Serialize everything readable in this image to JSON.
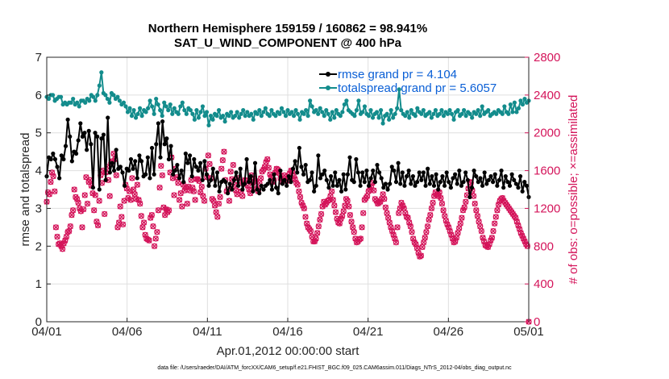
{
  "chart_data": {
    "type": "line",
    "title": "Northern Hemisphere 159159 / 160862 = 98.941%",
    "subtitle": "SAT_U_WIND_COMPONENT @ 400 hPa",
    "xlabel": "Apr.01,2012 00:00:00 start",
    "ylabel_left": "rmse and totalspread",
    "ylabel_right": "# of obs: o=possible; ×=assimilated",
    "xlim": [
      0,
      30
    ],
    "ylim_left": [
      0,
      7
    ],
    "ylim_right": [
      0,
      2800
    ],
    "x_ticks": [
      0,
      5,
      10,
      15,
      20,
      25,
      30
    ],
    "x_tick_labels": [
      "04/01",
      "04/06",
      "04/11",
      "04/16",
      "04/21",
      "04/26",
      "05/01"
    ],
    "y_ticks_left": [
      "0",
      "1",
      "2",
      "3",
      "4",
      "5",
      "6",
      "7"
    ],
    "y_ticks_right": [
      "0",
      "400",
      "800",
      "1200",
      "1600",
      "2000",
      "2400",
      "2800"
    ],
    "grid": true,
    "legend_position": "top-right",
    "colors": {
      "rmse": "#000000",
      "spread": "#138c8c",
      "obs": "#d4145a",
      "legend_text": "#0a5fd6"
    },
    "series": [
      {
        "name": "rmse grand pr = 4.104",
        "axis": "left",
        "values": [
          3.85,
          4.35,
          4.3,
          4.45,
          4.3,
          4.1,
          3.8,
          4.4,
          4.3,
          4.65,
          5.35,
          4.9,
          4.25,
          4.5,
          4.45,
          4.8,
          5.25,
          4.9,
          5.0,
          4.55,
          5.05,
          4.7,
          3.55,
          5.0,
          4.9,
          3.5,
          4.85,
          4.95,
          3.75,
          5.4,
          3.95,
          4.2,
          4.0,
          4.55,
          4.05,
          4.1,
          3.95,
          3.6,
          4.05,
          4.0,
          4.3,
          4.05,
          4.25,
          3.8,
          4.4,
          4.25,
          3.85,
          3.9,
          4.35,
          3.8,
          4.6,
          3.9,
          4.7,
          5.25,
          4.35,
          5.3,
          4.7,
          4.85,
          4.3,
          4.65,
          3.9,
          4.0,
          4.15,
          3.8,
          4.0,
          3.7,
          4.45,
          4.2,
          4.4,
          3.85,
          4.3,
          4.1,
          4.0,
          4.2,
          3.75,
          4.25,
          3.9,
          3.6,
          3.75,
          4.05,
          3.6,
          3.95,
          3.45,
          3.7,
          3.75,
          3.7,
          3.4,
          3.65,
          3.5,
          3.75,
          3.95,
          3.6,
          4.05,
          3.5,
          3.65,
          4.3,
          3.7,
          3.85,
          3.45,
          4.2,
          3.5,
          3.4,
          3.6,
          3.5,
          3.6,
          3.65,
          3.75,
          3.5,
          3.9,
          3.55,
          3.4,
          4.0,
          3.65,
          3.75,
          3.6,
          3.85,
          3.7,
          4.05,
          4.25,
          3.95,
          4.6,
          4.1,
          3.9,
          4.15,
          3.7,
          3.75,
          3.95,
          3.45,
          3.6,
          4.4,
          3.8,
          3.9,
          4.0,
          3.75,
          3.55,
          3.85,
          3.6,
          3.95,
          3.6,
          3.75,
          3.45,
          3.9,
          3.5,
          3.9,
          4.35,
          3.75,
          3.7,
          4.3,
          3.95,
          3.6,
          3.95,
          3.7,
          4.0,
          3.6,
          3.8,
          4.0,
          3.7,
          4.15,
          3.95,
          3.8,
          3.55,
          3.65,
          3.5,
          3.65,
          4.1,
          4.0,
          3.7,
          4.2,
          3.65,
          3.95,
          3.6,
          3.85,
          4.0,
          3.65,
          3.85,
          3.6,
          3.7,
          3.95,
          3.75,
          3.95,
          3.6,
          4.05,
          3.65,
          3.85,
          3.6,
          3.9,
          3.5,
          3.7,
          3.85,
          3.6,
          3.95,
          3.7,
          3.55,
          3.8,
          3.9,
          3.65,
          4.0,
          3.6,
          3.7,
          3.95,
          3.75,
          3.3,
          3.55,
          4.0,
          3.85,
          3.7,
          3.8,
          3.6,
          3.95,
          3.65,
          3.75,
          3.85,
          3.7,
          3.9,
          3.6,
          3.75,
          4.0,
          3.55,
          3.85,
          3.7,
          3.6,
          3.9,
          3.75,
          3.65,
          3.55,
          3.85,
          3.45,
          3.7,
          3.6,
          3.3
        ]
      },
      {
        "name": "totalspread grand pr = 5.6057",
        "axis": "left",
        "values": [
          5.95,
          5.9,
          6.0,
          6.0,
          5.85,
          5.9,
          5.95,
          5.95,
          5.75,
          5.8,
          5.75,
          5.8,
          5.8,
          5.9,
          5.75,
          5.8,
          5.7,
          5.85,
          5.85,
          5.8,
          5.9,
          5.85,
          6.0,
          5.95,
          5.85,
          6.0,
          6.25,
          6.6,
          6.05,
          6.0,
          5.9,
          5.8,
          6.05,
          6.0,
          5.9,
          5.95,
          5.85,
          5.75,
          5.8,
          5.7,
          5.55,
          5.65,
          5.45,
          5.6,
          5.4,
          5.5,
          5.65,
          5.45,
          5.6,
          5.55,
          5.65,
          5.85,
          5.7,
          5.5,
          5.9,
          5.75,
          5.6,
          5.45,
          5.8,
          5.7,
          5.6,
          5.75,
          5.5,
          5.65,
          5.55,
          5.5,
          5.7,
          5.8,
          5.6,
          5.5,
          5.65,
          5.6,
          5.5,
          5.35,
          5.6,
          5.4,
          5.55,
          5.7,
          5.45,
          5.55,
          5.2,
          5.45,
          5.35,
          5.5,
          5.45,
          5.6,
          5.4,
          5.45,
          5.3,
          5.5,
          5.45,
          5.55,
          5.4,
          5.45,
          5.55,
          5.4,
          5.5,
          5.6,
          5.45,
          5.55,
          5.45,
          5.5,
          5.35,
          5.55,
          5.5,
          5.6,
          5.45,
          5.55,
          5.65,
          5.5,
          5.45,
          5.6,
          5.5,
          5.45,
          5.55,
          5.5,
          5.65,
          5.55,
          5.45,
          5.6,
          5.5,
          5.55,
          5.45,
          5.6,
          5.5,
          5.35,
          5.55,
          5.5,
          5.6,
          5.45,
          5.85,
          5.7,
          5.55,
          5.6,
          5.5,
          5.65,
          5.55,
          5.45,
          5.6,
          5.5,
          5.35,
          5.55,
          5.4,
          5.6,
          5.5,
          5.45,
          5.55,
          5.75,
          5.85,
          5.6,
          5.55,
          5.5,
          5.45,
          5.6,
          5.85,
          5.5,
          5.55,
          5.7,
          5.5,
          5.45,
          5.6,
          5.4,
          5.5,
          5.55,
          5.4,
          5.6,
          5.25,
          5.45,
          5.5,
          5.35,
          5.6,
          5.4,
          5.5,
          5.65,
          6.15,
          5.6,
          5.5,
          5.45,
          5.55,
          5.4,
          5.6,
          5.5,
          5.45,
          5.65,
          5.55,
          5.5,
          5.6,
          5.45,
          5.5,
          5.55,
          5.4,
          5.5,
          5.6,
          5.45,
          5.5,
          5.6,
          5.45,
          5.55,
          5.5,
          5.6,
          5.5,
          5.35,
          5.55,
          5.6,
          5.45,
          5.5,
          5.6,
          5.45,
          5.55,
          5.5,
          5.4,
          5.55,
          5.5,
          5.6,
          5.45,
          5.7,
          5.5,
          5.55,
          5.6,
          5.45,
          5.5,
          5.55,
          5.5,
          5.6,
          5.55,
          5.5,
          5.7,
          5.55,
          5.5,
          5.75,
          5.55,
          5.8,
          5.55,
          5.65,
          5.85,
          5.75,
          5.9,
          5.8,
          5.85
        ]
      },
      {
        "name": "obs possible",
        "axis": "right",
        "values": [
          1270,
          1370,
          1350,
          1480,
          1580,
          1540,
          1380,
          1000,
          900,
          820,
          830,
          800,
          770,
          830,
          860,
          900,
          950,
          960,
          1010,
          1130,
          1180,
          1400,
          1320,
          1300,
          1260,
          1200,
          1170,
          1000,
          1190,
          1340,
          1530,
          1250,
          1480,
          1500,
          1440,
          1360,
          1180,
          1340,
          1060,
          1020,
          1280,
          1550,
          1470,
          1600,
          1140,
          1580,
          1640,
          1500,
          1330,
          1680,
          1700,
          1780,
          1720,
          1550,
          1000,
          1050,
          1220,
          1110,
          1030,
          1280,
          1450,
          1410,
          1310,
          1380,
          1290,
          1520,
          1400,
          1350,
          1300,
          1450,
          1290,
          1250,
          1120,
          1000,
          1050,
          920,
          880,
          870,
          860,
          1100,
          1130,
          1010,
          800,
          880,
          950,
          1180,
          1420,
          1650,
          1550,
          1210,
          1130,
          1190,
          1160,
          1180,
          1580,
          1740,
          1520,
          1340,
          1620,
          1530,
          1470,
          1290,
          1360,
          1220,
          1450,
          1390,
          1420,
          1250,
          1430,
          1390,
          1500,
          1420,
          1380,
          1290,
          1510,
          1510,
          1490,
          1370,
          1430,
          1330,
          1280,
          1620,
          1530,
          1760,
          1670,
          1520,
          1300,
          1280,
          1230,
          1160,
          1110,
          1250,
          1320,
          1620,
          1710,
          1800,
          1500,
          1380,
          1400,
          1280,
          1590,
          1510,
          1660,
          1450,
          1390,
          1350,
          1520,
          1470,
          1380,
          1330,
          1460,
          1500,
          1490,
          1440,
          1400,
          1360,
          1550,
          1470,
          1520,
          1490,
          1410,
          1380,
          1470,
          1520,
          1590,
          1610,
          1640,
          1690,
          1720,
          1630,
          1560,
          1530,
          1480,
          1500,
          1580,
          1620,
          1610,
          1570,
          1520,
          1480,
          1490,
          1550,
          1530,
          1490,
          1520,
          1570,
          1600,
          1590,
          1540,
          1510,
          1470,
          1450,
          1380,
          1320,
          1260,
          1230,
          1200,
          1110,
          1040,
          1000,
          980,
          960,
          900,
          850,
          850,
          880,
          940,
          1010,
          1080,
          1140,
          1220,
          1270,
          1240,
          1260,
          1280,
          1290,
          1330,
          1380,
          1290,
          1230,
          1160,
          1090,
          1050,
          1040,
          1090,
          1120,
          1170,
          1230,
          1300,
          1280,
          1220,
          1130,
          1060,
          1000,
          950,
          880,
          840,
          850,
          870,
          880,
          1000,
          1150,
          1290,
          1310,
          1330,
          1380,
          1400,
          1430,
          1470,
          1390,
          1300,
          1280,
          1250,
          1260,
          1270,
          1300,
          1350,
          1300,
          1210,
          1150,
          1100,
          1050,
          1000,
          960,
          920,
          880,
          840,
          1000,
          1150,
          1200,
          1260,
          1230,
          1200,
          1150,
          1110,
          1100,
          1050,
          1010,
          950,
          880,
          840,
          820,
          780,
          730,
          690,
          700,
          790,
          840,
          890,
          950,
          1010,
          1080,
          1130,
          1200,
          1260,
          1330,
          1370,
          1350,
          1330,
          1370,
          1310,
          1250,
          1180,
          1120,
          1070,
          1030,
          1000,
          960,
          920,
          880,
          840,
          850,
          890,
          940,
          990,
          1040,
          1100,
          1180,
          1210,
          1270,
          1340,
          1410,
          1480,
          1470,
          1390,
          1330,
          1250,
          1180,
          1120,
          1060,
          1010,
          960,
          890,
          850,
          810,
          800,
          790,
          820,
          860,
          890,
          960,
          1040,
          1110,
          1180,
          1240,
          1280,
          1300,
          1310,
          1280,
          1260,
          1240,
          1220,
          1200,
          1180,
          1160,
          1140,
          1120,
          1100,
          1060,
          1020,
          980,
          940,
          910,
          880,
          850,
          820,
          800,
          0
        ]
      }
    ]
  },
  "footnote": "data file: /Users/raeder/DAI/ATM_forcXX/CAM6_setup/f.e21.FHIST_BGC.f09_025.CAM6assim.011/Diags_NTrS_2012-04/obs_diag_output.nc"
}
